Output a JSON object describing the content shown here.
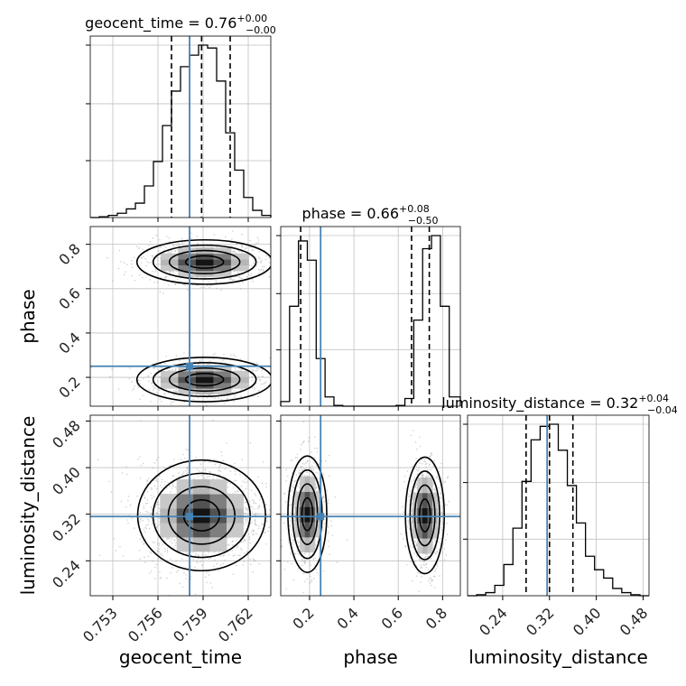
{
  "chart_data": {
    "type": "corner",
    "parameters": [
      "geocent_time",
      "phase",
      "luminosity_distance"
    ],
    "truth": {
      "geocent_time": 0.7581,
      "phase": 0.25,
      "luminosity_distance": 0.316
    },
    "colors": {
      "truth": "#4682b4",
      "hist": "#000000",
      "grid": "#c0c0c0",
      "scatter": "#9a9a9a"
    },
    "titles": [
      {
        "param": "geocent_time",
        "label": "geocent_time = 0.76",
        "upper": "+0.00",
        "lower": "−0.00"
      },
      {
        "param": "phase",
        "label": "phase = 0.66",
        "upper": "+0.08",
        "lower": "−0.50"
      },
      {
        "param": "luminosity_distance",
        "label": "luminosity_distance = 0.32",
        "upper": "+0.04",
        "lower": "−0.04"
      }
    ],
    "axes": {
      "geocent_time": {
        "range": [
          0.7515,
          0.7635
        ],
        "ticks": [
          0.753,
          0.756,
          0.759,
          0.762
        ],
        "tick_labels": [
          "0.753",
          "0.756",
          "0.759",
          "0.762"
        ],
        "label": "geocent_time"
      },
      "phase": {
        "range": [
          0.07,
          0.88
        ],
        "ticks": [
          0.2,
          0.4,
          0.6,
          0.8
        ],
        "tick_labels": [
          "0.2",
          "0.4",
          "0.6",
          "0.8"
        ],
        "label": "phase"
      },
      "luminosity_distance": {
        "range": [
          0.18,
          0.49
        ],
        "ticks": [
          0.24,
          0.32,
          0.4,
          0.48
        ],
        "tick_labels": [
          "0.24",
          "0.32",
          "0.40",
          "0.48"
        ],
        "label": "luminosity_distance"
      }
    },
    "hist_1d": {
      "geocent_time": {
        "bin_edges": [
          0.7515,
          0.7521,
          0.7527,
          0.7533,
          0.7539,
          0.7545,
          0.7551,
          0.7557,
          0.7563,
          0.7569,
          0.7575,
          0.7581,
          0.7587,
          0.7593,
          0.7599,
          0.7605,
          0.7611,
          0.7617,
          0.7623,
          0.7629,
          0.7635
        ],
        "counts": [
          0,
          1,
          3,
          6,
          12,
          20,
          44,
          78,
          128,
          176,
          210,
          226,
          240,
          236,
          190,
          118,
          66,
          28,
          10,
          3
        ],
        "quantiles": [
          0.7569,
          0.7589,
          0.7608
        ]
      },
      "phase": {
        "bin_edges": [
          0.07,
          0.11,
          0.15,
          0.19,
          0.23,
          0.27,
          0.31,
          0.35,
          0.39,
          0.43,
          0.47,
          0.51,
          0.55,
          0.59,
          0.63,
          0.67,
          0.71,
          0.75,
          0.79,
          0.83,
          0.88
        ],
        "counts": [
          6,
          130,
          215,
          190,
          62,
          12,
          1,
          0,
          0,
          0,
          0,
          0,
          0,
          1,
          10,
          112,
          205,
          222,
          130,
          12
        ],
        "quantiles": [
          0.16,
          0.66,
          0.74
        ]
      },
      "luminosity_distance": {
        "bin_edges": [
          0.18,
          0.1955,
          0.211,
          0.2265,
          0.242,
          0.2575,
          0.273,
          0.2885,
          0.304,
          0.3195,
          0.335,
          0.3505,
          0.366,
          0.3815,
          0.397,
          0.4125,
          0.428,
          0.4435,
          0.459,
          0.4745,
          0.49
        ],
        "counts": [
          0,
          1,
          3,
          10,
          30,
          65,
          110,
          150,
          163,
          165,
          140,
          106,
          70,
          38,
          25,
          17,
          7,
          3,
          1,
          0
        ],
        "quantiles": [
          0.28,
          0.32,
          0.36
        ]
      }
    },
    "modes_2d": {
      "phase_vs_geocent_time": [
        {
          "x": 0.7591,
          "y": 0.19,
          "sx": 0.0018,
          "sy": 0.04,
          "weight": 0.5
        },
        {
          "x": 0.7591,
          "y": 0.72,
          "sx": 0.0018,
          "sy": 0.04,
          "weight": 0.5
        }
      ],
      "luminosity_distance_vs_geocent_time": [
        {
          "x": 0.7589,
          "y": 0.318,
          "sx": 0.0017,
          "sy": 0.038,
          "weight": 1.0
        }
      ],
      "luminosity_distance_vs_phase": [
        {
          "x": 0.19,
          "y": 0.32,
          "sx": 0.035,
          "sy": 0.04,
          "weight": 0.5
        },
        {
          "x": 0.72,
          "y": 0.318,
          "sx": 0.035,
          "sy": 0.04,
          "weight": 0.5
        }
      ]
    },
    "grid": true
  }
}
